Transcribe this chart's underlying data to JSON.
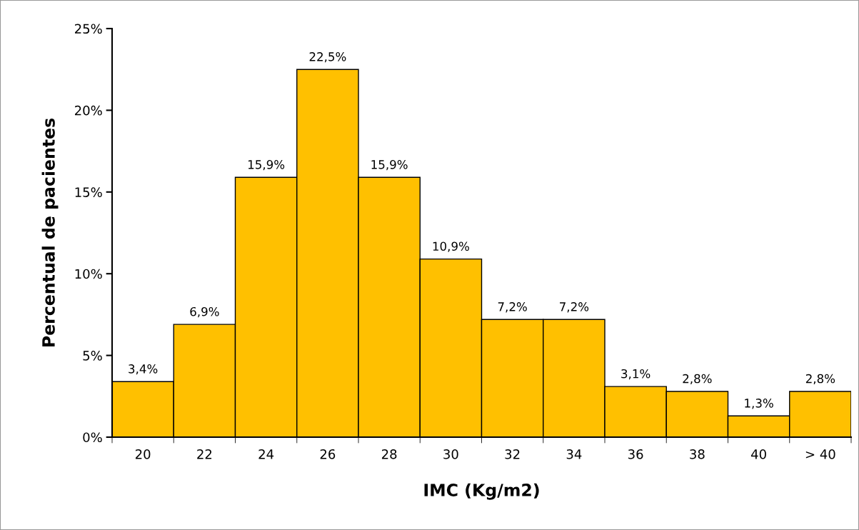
{
  "chart_data": {
    "type": "bar",
    "xlabel": "IMC (Kg/m2)",
    "ylabel": "Percentual de pacientes",
    "categories": [
      "20",
      "22",
      "24",
      "26",
      "28",
      "30",
      "32",
      "34",
      "36",
      "38",
      "40",
      "> 40"
    ],
    "values": [
      3.4,
      6.9,
      15.9,
      22.5,
      15.9,
      10.9,
      7.2,
      7.2,
      3.1,
      2.8,
      1.3,
      2.8
    ],
    "value_labels": [
      "3,4%",
      "6,9%",
      "15,9%",
      "22,5%",
      "15,9%",
      "10,9%",
      "7,2%",
      "7,2%",
      "3,1%",
      "2,8%",
      "1,3%",
      "2,8%"
    ],
    "color": "#ffc000",
    "ylim": [
      0,
      25
    ],
    "yticks": [
      {
        "value": 0,
        "label": "0%"
      },
      {
        "value": 5,
        "label": "5%"
      },
      {
        "value": 10,
        "label": "10%"
      },
      {
        "value": 15,
        "label": "15%"
      },
      {
        "value": 20,
        "label": "20%"
      },
      {
        "value": 25,
        "label": "25%"
      }
    ],
    "grid": false
  }
}
